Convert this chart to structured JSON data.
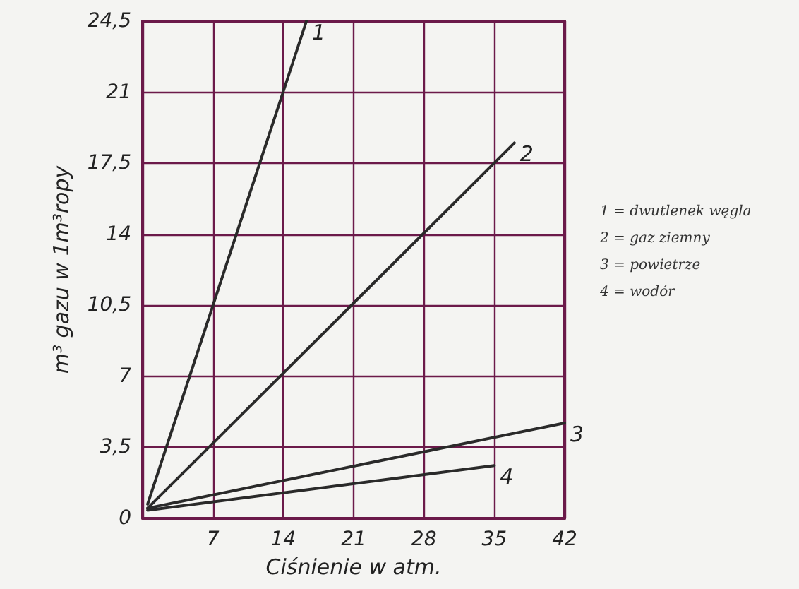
{
  "chart_data": {
    "type": "line",
    "xlabel": "Ciśnienie w atm.",
    "ylabel": "m³ gazu w 1m³ropy",
    "xlim": [
      0,
      42
    ],
    "xticks": [
      {
        "value": 0,
        "label": null
      },
      7,
      14,
      21,
      28,
      35,
      42
    ],
    "ylim": [
      0,
      24.5
    ],
    "yticks": [
      0,
      {
        "value": 3.5,
        "label": "3,5"
      },
      7,
      {
        "value": 10.5,
        "label": "10,5"
      },
      14,
      {
        "value": 17.5,
        "label": "17,5"
      },
      21,
      {
        "value": 24.5,
        "label": "24,5"
      }
    ],
    "grid": true,
    "legend": false,
    "marker": "none",
    "line_style": "solid",
    "series": [
      {
        "name": "1",
        "color": "#2a2a2a",
        "x": [
          0.5,
          16.3
        ],
        "values": [
          0.7,
          24.5
        ]
      },
      {
        "name": "2",
        "color": "#2a2a2a",
        "x": [
          0.5,
          37
        ],
        "values": [
          0.5,
          18.5
        ]
      },
      {
        "name": "3",
        "color": "#2a2a2a",
        "x": [
          0.5,
          42
        ],
        "values": [
          0.5,
          4.7
        ]
      },
      {
        "name": "4",
        "color": "#2a2a2a",
        "x": [
          0.5,
          35
        ],
        "values": [
          0.4,
          2.6
        ]
      }
    ],
    "annotations": [
      "1 = dwutlenek węgla",
      "2 = gaz ziemny",
      "3 = powietrze",
      "4 = wodór"
    ]
  }
}
